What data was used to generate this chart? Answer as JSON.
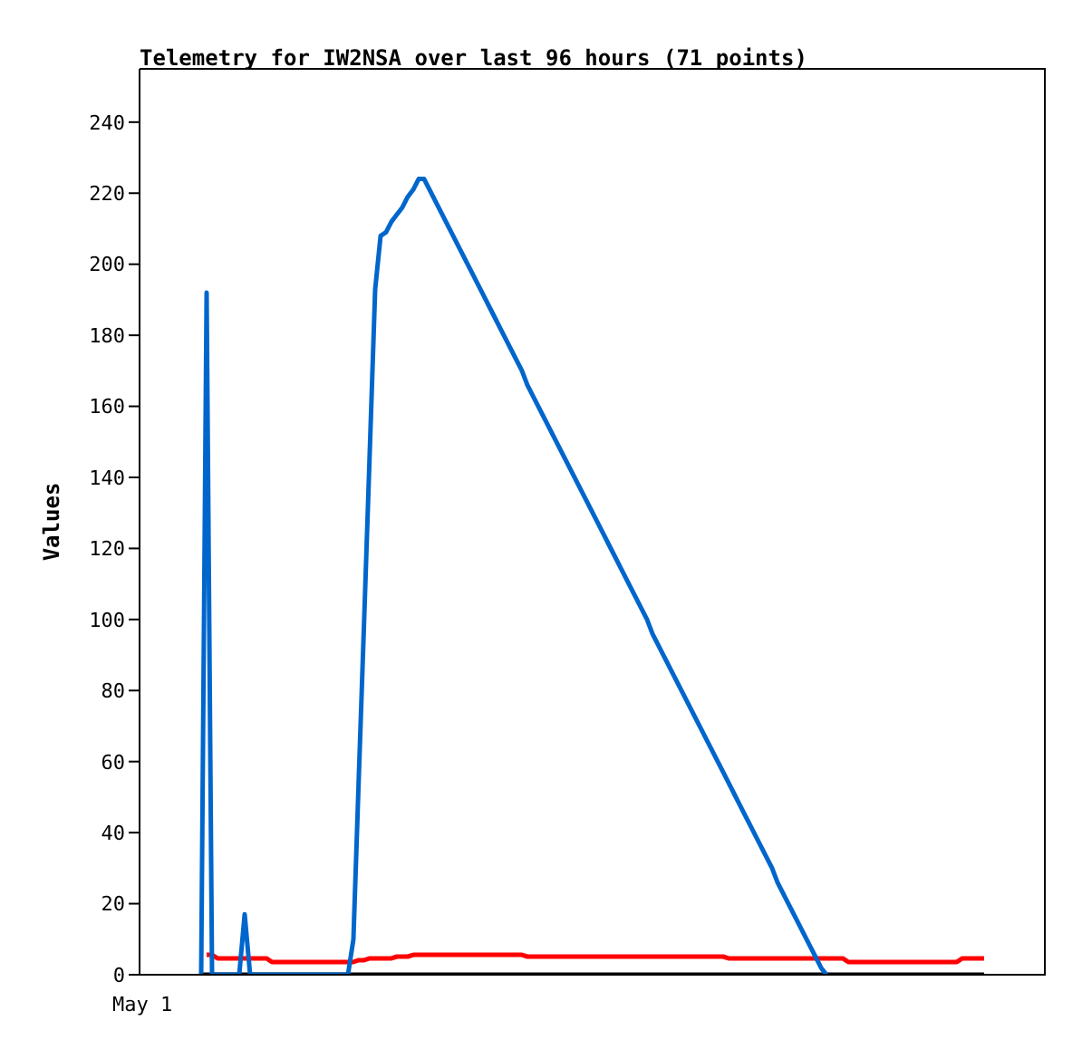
{
  "chart_data": {
    "type": "line",
    "title": "Telemetry for IW2NSA over last 96 hours (71 points)",
    "ylabel": "Values",
    "annotations": [
      "May 1"
    ],
    "ylim": [
      0,
      255
    ],
    "yticks": [
      0,
      20,
      40,
      60,
      80,
      100,
      120,
      140,
      160,
      180,
      200,
      220,
      240
    ],
    "marker": "none",
    "line_style": "solid",
    "categories": [
      null,
      null,
      null,
      null,
      null,
      null,
      null,
      null,
      null,
      null,
      null,
      null,
      null,
      null,
      null,
      null,
      null,
      null,
      null,
      null,
      null,
      null,
      null,
      null,
      null,
      null,
      null,
      null,
      null,
      null,
      null,
      null,
      null,
      null,
      null,
      null,
      null,
      null,
      null,
      null,
      null,
      null,
      null,
      null,
      null,
      null,
      null,
      null,
      null,
      null,
      null,
      null,
      null,
      null,
      null,
      null,
      null,
      null,
      null,
      null,
      null,
      null,
      null,
      null,
      null,
      null,
      null,
      null,
      null,
      null,
      null,
      null,
      null,
      null,
      null,
      null,
      null,
      null,
      null,
      null,
      null,
      null,
      null,
      null,
      null,
      null,
      null,
      null,
      null,
      null,
      null,
      null,
      null,
      null,
      null,
      null,
      null,
      null,
      null,
      null,
      null,
      null,
      null,
      null,
      null,
      null,
      null,
      null,
      null,
      null,
      null,
      null,
      null,
      null,
      null,
      null,
      null,
      null,
      null,
      null,
      null,
      null,
      null,
      null,
      null,
      null,
      null,
      null,
      null,
      null,
      null,
      null,
      null,
      null,
      null,
      null,
      null,
      null,
      null,
      null,
      null,
      null,
      null,
      null,
      null
    ],
    "series": [
      {
        "color": "#000000",
        "values": [
          0,
          0,
          0,
          0,
          0,
          0,
          0,
          0,
          0,
          0,
          0,
          0,
          0,
          0,
          0,
          0,
          0,
          0,
          0,
          0,
          0,
          0,
          0,
          0,
          0,
          0,
          0,
          0,
          0,
          0,
          0,
          0,
          0,
          0,
          0,
          0,
          0,
          0,
          0,
          0,
          0,
          0,
          0,
          0,
          0,
          0,
          0,
          0,
          0,
          0,
          0,
          0,
          0,
          0,
          0,
          0,
          0,
          0,
          0,
          0,
          0,
          0,
          0,
          0,
          0,
          0,
          0,
          0,
          0,
          0,
          0,
          0,
          0,
          0,
          0,
          0,
          0,
          0,
          0,
          0,
          0,
          0,
          0,
          0,
          0,
          0,
          0,
          0,
          0,
          0,
          0,
          0,
          0,
          0,
          0,
          0,
          0,
          0,
          0,
          0,
          0,
          0,
          0,
          0,
          0,
          0,
          0,
          0,
          0,
          0,
          0,
          0,
          0,
          0,
          0,
          0,
          0,
          0,
          0,
          0,
          0,
          0,
          0,
          0,
          0,
          0,
          0,
          0,
          0,
          0,
          0,
          0,
          0,
          0,
          0,
          0,
          0,
          0,
          0,
          0,
          0,
          0,
          0,
          0,
          0
        ]
      },
      {
        "color": "#ff0000",
        "values": [
          null,
          5.6,
          5.6,
          4.6,
          4.6,
          4.6,
          4.6,
          4.6,
          4.6,
          4.6,
          4.6,
          4.6,
          4.6,
          3.6,
          3.6,
          3.6,
          3.6,
          3.6,
          3.6,
          3.6,
          3.6,
          3.6,
          3.6,
          3.6,
          3.6,
          3.6,
          3.6,
          3.6,
          3.6,
          4.1,
          4.1,
          4.6,
          4.6,
          4.6,
          4.6,
          4.6,
          5.1,
          5.1,
          5.1,
          5.6,
          5.6,
          5.6,
          5.6,
          5.6,
          5.6,
          5.6,
          5.6,
          5.6,
          5.6,
          5.6,
          5.6,
          5.6,
          5.6,
          5.6,
          5.6,
          5.6,
          5.6,
          5.6,
          5.6,
          5.6,
          5.1,
          5.1,
          5.1,
          5.1,
          5.1,
          5.1,
          5.1,
          5.1,
          5.1,
          5.1,
          5.1,
          5.1,
          5.1,
          5.1,
          5.1,
          5.1,
          5.1,
          5.1,
          5.1,
          5.1,
          5.1,
          5.1,
          5.1,
          5.1,
          5.1,
          5.1,
          5.1,
          5.1,
          5.1,
          5.1,
          5.1,
          5.1,
          5.1,
          5.1,
          5.1,
          5.1,
          5.1,
          4.6,
          4.6,
          4.6,
          4.6,
          4.6,
          4.6,
          4.6,
          4.6,
          4.6,
          4.6,
          4.6,
          4.6,
          4.6,
          4.6,
          4.6,
          4.6,
          4.6,
          4.6,
          4.6,
          4.6,
          4.6,
          4.6,
          3.6,
          3.6,
          3.6,
          3.6,
          3.6,
          3.6,
          3.6,
          3.6,
          3.6,
          3.6,
          3.6,
          3.6,
          3.6,
          3.6,
          3.6,
          3.6,
          3.6,
          3.6,
          3.6,
          3.6,
          3.6,
          4.6,
          4.6,
          4.6,
          4.6,
          4.6
        ]
      },
      {
        "color": "#0066cc",
        "values": [
          0,
          192,
          0,
          0,
          0,
          0,
          0,
          0,
          17,
          0,
          0,
          0,
          0,
          0,
          0,
          0,
          0,
          0,
          0,
          0,
          0,
          0,
          0,
          0,
          0,
          0,
          0,
          0,
          10,
          56,
          101,
          147,
          193,
          208,
          209,
          212,
          214,
          216,
          219,
          221,
          224,
          224,
          221,
          218,
          215,
          212,
          209,
          206,
          203,
          200,
          197,
          194,
          191,
          188,
          185,
          182,
          179,
          176,
          173,
          170,
          166,
          163,
          160,
          157,
          154,
          151,
          148,
          145,
          142,
          139,
          136,
          133,
          130,
          127,
          124,
          121,
          118,
          115,
          112,
          109,
          106,
          103,
          100,
          96,
          93,
          90,
          87,
          84,
          81,
          78,
          75,
          72,
          69,
          66,
          63,
          60,
          57,
          54,
          51,
          48,
          45,
          42,
          39,
          36,
          33,
          30,
          26,
          23,
          20,
          17,
          14,
          11,
          8,
          5,
          2,
          0,
          null,
          null,
          null,
          null,
          null,
          null,
          null,
          null,
          null,
          null,
          null,
          null,
          null,
          null,
          null,
          null,
          null,
          null,
          null,
          null,
          null,
          null,
          null,
          null,
          null,
          null,
          null,
          null,
          null
        ]
      }
    ]
  }
}
